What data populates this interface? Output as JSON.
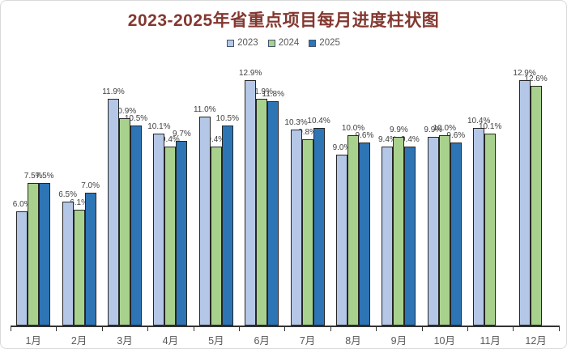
{
  "title": "2023-2025年省重点项目每月进度柱状图",
  "chart_data": {
    "type": "bar",
    "title": "2023-2025年省重点项目每月进度柱状图",
    "categories": [
      "1月",
      "2月",
      "3月",
      "4月",
      "5月",
      "6月",
      "7月",
      "8月",
      "9月",
      "10月",
      "11月",
      "12月"
    ],
    "series": [
      {
        "name": "2023",
        "color": "#b4c7e7",
        "values": [
          6.0,
          6.5,
          11.9,
          10.1,
          11.0,
          12.9,
          10.3,
          9.0,
          9.4,
          9.9,
          10.4,
          12.9
        ]
      },
      {
        "name": "2024",
        "color": "#a9d18e",
        "values": [
          7.5,
          6.1,
          10.9,
          9.4,
          9.4,
          11.9,
          9.8,
          10.0,
          9.9,
          10.0,
          10.1,
          12.6
        ]
      },
      {
        "name": "2025",
        "color": "#2e75b6",
        "values": [
          7.5,
          7.0,
          10.5,
          9.7,
          10.5,
          11.8,
          10.4,
          9.6,
          9.4,
          9.6,
          null,
          null
        ]
      }
    ],
    "value_suffix": "%",
    "xlabel": "",
    "ylabel": "",
    "ylim": [
      0,
      13.5
    ],
    "grid": false,
    "legend_position": "top",
    "data_labels": true,
    "title_color": "#833830",
    "axis_color": "#333333",
    "label_color": "#404040",
    "tick_label_color": "#595959"
  }
}
